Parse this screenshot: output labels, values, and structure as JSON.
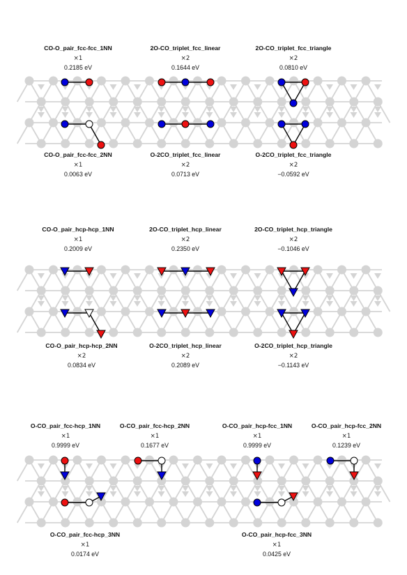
{
  "colors": {
    "lattice": "#d4d4d4",
    "co": "#0000dd",
    "o": "#ee1111",
    "empty": "#ffffff",
    "bond": "#000000",
    "text": "#111111"
  },
  "panels": [
    {
      "id": "fcc-fcc",
      "clusters": [
        {
          "name": "CO-O_pair_fcc-fcc_1NN",
          "multiplicity": "×1",
          "energy": "0.2185 eV"
        },
        {
          "name": "2O-CO_triplet_fcc_linear",
          "multiplicity": "×2",
          "energy": "0.1644 eV"
        },
        {
          "name": "2O-CO_triplet_fcc_triangle",
          "multiplicity": "×2",
          "energy": "0.0810 eV"
        },
        {
          "name": "CO-O_pair_fcc-fcc_2NN",
          "multiplicity": "×1",
          "energy": "0.0063 eV"
        },
        {
          "name": "O-2CO_triplet_fcc_linear",
          "multiplicity": "×2",
          "energy": "0.0713 eV"
        },
        {
          "name": "O-2CO_triplet_fcc_triangle",
          "multiplicity": "×2",
          "energy": "−0.0592 eV"
        }
      ]
    },
    {
      "id": "hcp-hcp",
      "clusters": [
        {
          "name": "CO-O_pair_hcp-hcp_1NN",
          "multiplicity": "×1",
          "energy": "0.2009 eV"
        },
        {
          "name": "2O-CO_triplet_hcp_linear",
          "multiplicity": "×2",
          "energy": "0.2350 eV"
        },
        {
          "name": "2O-CO_triplet_hcp_triangle",
          "multiplicity": "×2",
          "energy": "−0.1046 eV"
        },
        {
          "name": "CO-O_pair_hcp-hcp_2NN",
          "multiplicity": "×2",
          "energy": "0.0834 eV"
        },
        {
          "name": "O-2CO_triplet_hcp_linear",
          "multiplicity": "×2",
          "energy": "0.2089 eV"
        },
        {
          "name": "O-2CO_triplet_hcp_triangle",
          "multiplicity": "×2",
          "energy": "−0.1143 eV"
        }
      ]
    },
    {
      "id": "fcc-hcp",
      "clusters": [
        {
          "name": "O-CO_pair_fcc-hcp_1NN",
          "multiplicity": "×1",
          "energy": "0.9999 eV"
        },
        {
          "name": "O-CO_pair_fcc-hcp_2NN",
          "multiplicity": "×1",
          "energy": "0.1677 eV"
        },
        {
          "name": "O-CO_pair_hcp-fcc_1NN",
          "multiplicity": "×1",
          "energy": "0.9999 eV"
        },
        {
          "name": "O-CO_pair_hcp-fcc_2NN",
          "multiplicity": "×1",
          "energy": "0.1239 eV"
        },
        {
          "name": "O-CO_pair_fcc-hcp_3NN",
          "multiplicity": "×1",
          "energy": "0.0174 eV"
        },
        {
          "name": "O-CO_pair_hcp-fcc_3NN",
          "multiplicity": "×1",
          "energy": "0.0425 eV"
        }
      ]
    }
  ]
}
